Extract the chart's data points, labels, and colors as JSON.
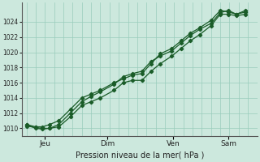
{
  "title": "",
  "xlabel": "Pression niveau de la mer( hPa )",
  "ylabel": "",
  "bg_color": "#cce8dd",
  "grid_color": "#99ccbb",
  "line_color": "#1a5c28",
  "x_ticks_labels": [
    "Jeu",
    "Dim",
    "Ven",
    "Sam"
  ],
  "x_ticks_pos": [
    0.08,
    0.35,
    0.635,
    0.875
  ],
  "ylim": [
    1009.0,
    1026.5
  ],
  "yticks": [
    1010,
    1012,
    1014,
    1016,
    1018,
    1020,
    1022,
    1024
  ],
  "series1_x": [
    0.0,
    0.04,
    0.07,
    0.1,
    0.14,
    0.19,
    0.24,
    0.28,
    0.32,
    0.38,
    0.42,
    0.46,
    0.5,
    0.54,
    0.58,
    0.63,
    0.67,
    0.71,
    0.75,
    0.8,
    0.84,
    0.875,
    0.91,
    0.95
  ],
  "series1_y": [
    1010.3,
    1010.1,
    1010.0,
    1010.0,
    1010.2,
    1011.5,
    1013.0,
    1013.5,
    1014.0,
    1015.0,
    1016.0,
    1016.3,
    1016.3,
    1017.5,
    1018.5,
    1019.5,
    1020.5,
    1021.5,
    1022.3,
    1023.5,
    1025.0,
    1025.0,
    1024.8,
    1025.0
  ],
  "series2_x": [
    0.0,
    0.04,
    0.07,
    0.1,
    0.14,
    0.19,
    0.24,
    0.28,
    0.32,
    0.38,
    0.42,
    0.46,
    0.5,
    0.54,
    0.58,
    0.63,
    0.67,
    0.71,
    0.75,
    0.8,
    0.84,
    0.875,
    0.91,
    0.95
  ],
  "series2_y": [
    1010.5,
    1010.2,
    1010.2,
    1010.5,
    1011.0,
    1012.5,
    1014.0,
    1014.5,
    1015.0,
    1016.0,
    1016.5,
    1017.0,
    1017.2,
    1018.5,
    1019.8,
    1020.5,
    1021.5,
    1022.5,
    1023.2,
    1024.2,
    1025.5,
    1025.3,
    1025.0,
    1025.3
  ],
  "series3_x": [
    0.0,
    0.04,
    0.07,
    0.1,
    0.14,
    0.19,
    0.24,
    0.28,
    0.32,
    0.38,
    0.42,
    0.46,
    0.5,
    0.54,
    0.58,
    0.63,
    0.67,
    0.71,
    0.75,
    0.8,
    0.84,
    0.875,
    0.91,
    0.95
  ],
  "series3_y": [
    1010.5,
    1010.0,
    1009.9,
    1010.0,
    1010.5,
    1012.0,
    1013.5,
    1014.2,
    1014.8,
    1015.8,
    1016.8,
    1017.2,
    1017.5,
    1018.8,
    1019.5,
    1020.2,
    1021.2,
    1022.2,
    1023.0,
    1023.8,
    1025.2,
    1025.5,
    1025.0,
    1025.5
  ]
}
